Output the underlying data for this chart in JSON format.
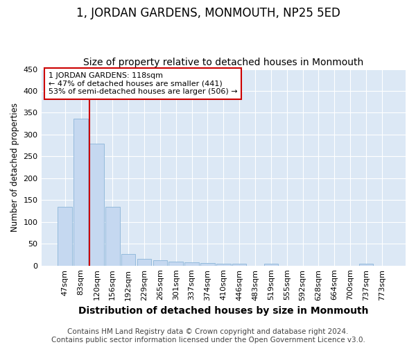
{
  "title": "1, JORDAN GARDENS, MONMOUTH, NP25 5ED",
  "subtitle": "Size of property relative to detached houses in Monmouth",
  "xlabel": "Distribution of detached houses by size in Monmouth",
  "ylabel": "Number of detached properties",
  "bar_labels": [
    "47sqm",
    "83sqm",
    "120sqm",
    "156sqm",
    "192sqm",
    "229sqm",
    "265sqm",
    "301sqm",
    "337sqm",
    "374sqm",
    "410sqm",
    "446sqm",
    "483sqm",
    "519sqm",
    "555sqm",
    "592sqm",
    "628sqm",
    "664sqm",
    "700sqm",
    "737sqm",
    "773sqm"
  ],
  "bar_values": [
    135,
    336,
    280,
    135,
    27,
    15,
    12,
    9,
    7,
    6,
    5,
    4,
    0,
    5,
    0,
    0,
    0,
    0,
    0,
    4,
    0
  ],
  "bar_color": "#c5d8f0",
  "bar_edge_color": "#8ab4d8",
  "annotation_box_text": "1 JORDAN GARDENS: 118sqm\n← 47% of detached houses are smaller (441)\n53% of semi-detached houses are larger (506) →",
  "annotation_box_color": "#ffffff",
  "annotation_box_edge_color": "#cc0000",
  "vline_color": "#cc0000",
  "vline_x_index": 2,
  "ylim": [
    0,
    450
  ],
  "yticks": [
    0,
    50,
    100,
    150,
    200,
    250,
    300,
    350,
    400,
    450
  ],
  "footer_line1": "Contains HM Land Registry data © Crown copyright and database right 2024.",
  "footer_line2": "Contains public sector information licensed under the Open Government Licence v3.0.",
  "fig_bg_color": "#ffffff",
  "plot_bg_color": "#dce8f5",
  "grid_color": "#ffffff",
  "title_fontsize": 12,
  "subtitle_fontsize": 10,
  "xlabel_fontsize": 10,
  "ylabel_fontsize": 8.5,
  "tick_fontsize": 8,
  "annotation_fontsize": 8,
  "footer_fontsize": 7.5
}
